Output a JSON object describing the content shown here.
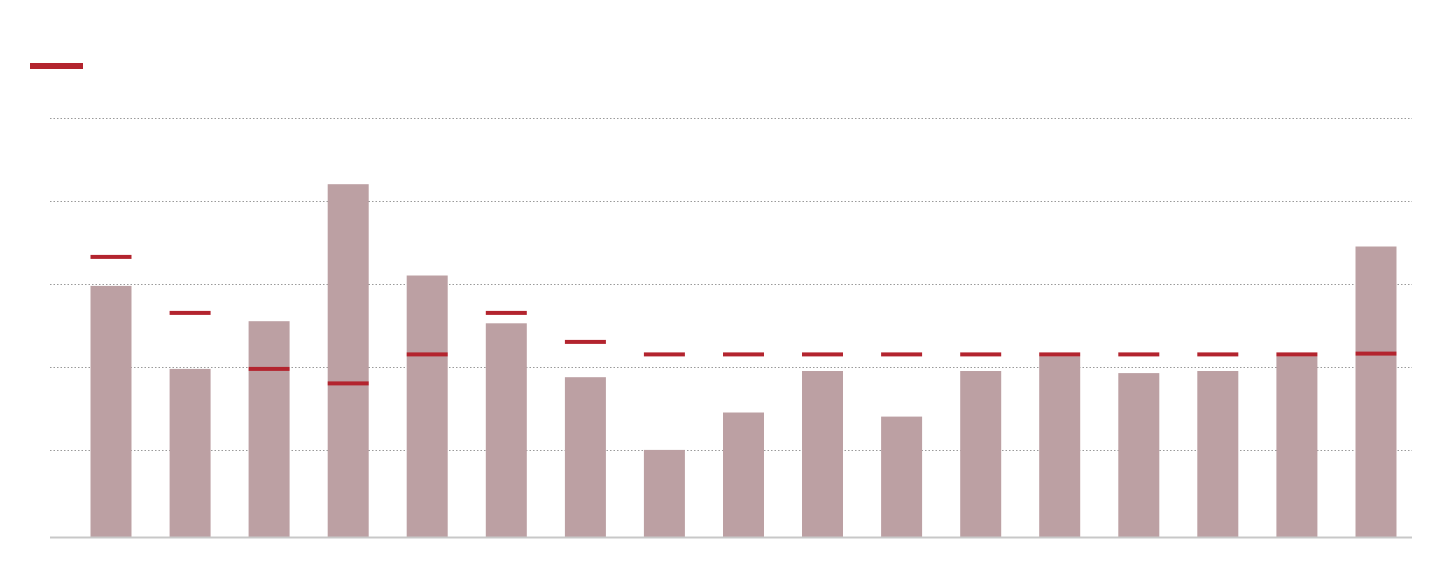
{
  "legend": {
    "marker_series_name": "",
    "marker_color": "#b3242e"
  },
  "chart_data": {
    "type": "bar",
    "categories": [
      "",
      "",
      "",
      "",
      "",
      "",
      "",
      "",
      "",
      "",
      "",
      "",
      "",
      "",
      "",
      "",
      ""
    ],
    "series": [
      {
        "kind": "bar",
        "color": "#bca0a3",
        "values": [
          60.5,
          40.5,
          52,
          85,
          63,
          51.5,
          38.5,
          21,
          30,
          40,
          29,
          40,
          43.5,
          39.5,
          40,
          43.5,
          70
        ]
      },
      {
        "kind": "marker",
        "color": "#b3242e",
        "values": [
          67.5,
          54,
          40.5,
          37,
          44,
          54,
          47,
          44,
          44,
          44,
          44,
          44,
          44,
          44,
          44,
          44,
          44.2
        ]
      }
    ],
    "ylim": [
      0,
      100
    ],
    "gridlines": [
      21,
      41,
      61,
      81,
      101
    ],
    "grid": true,
    "grid_style": "dotted",
    "legend_position": "top-left",
    "title": "",
    "xlabel": "",
    "ylabel": ""
  }
}
